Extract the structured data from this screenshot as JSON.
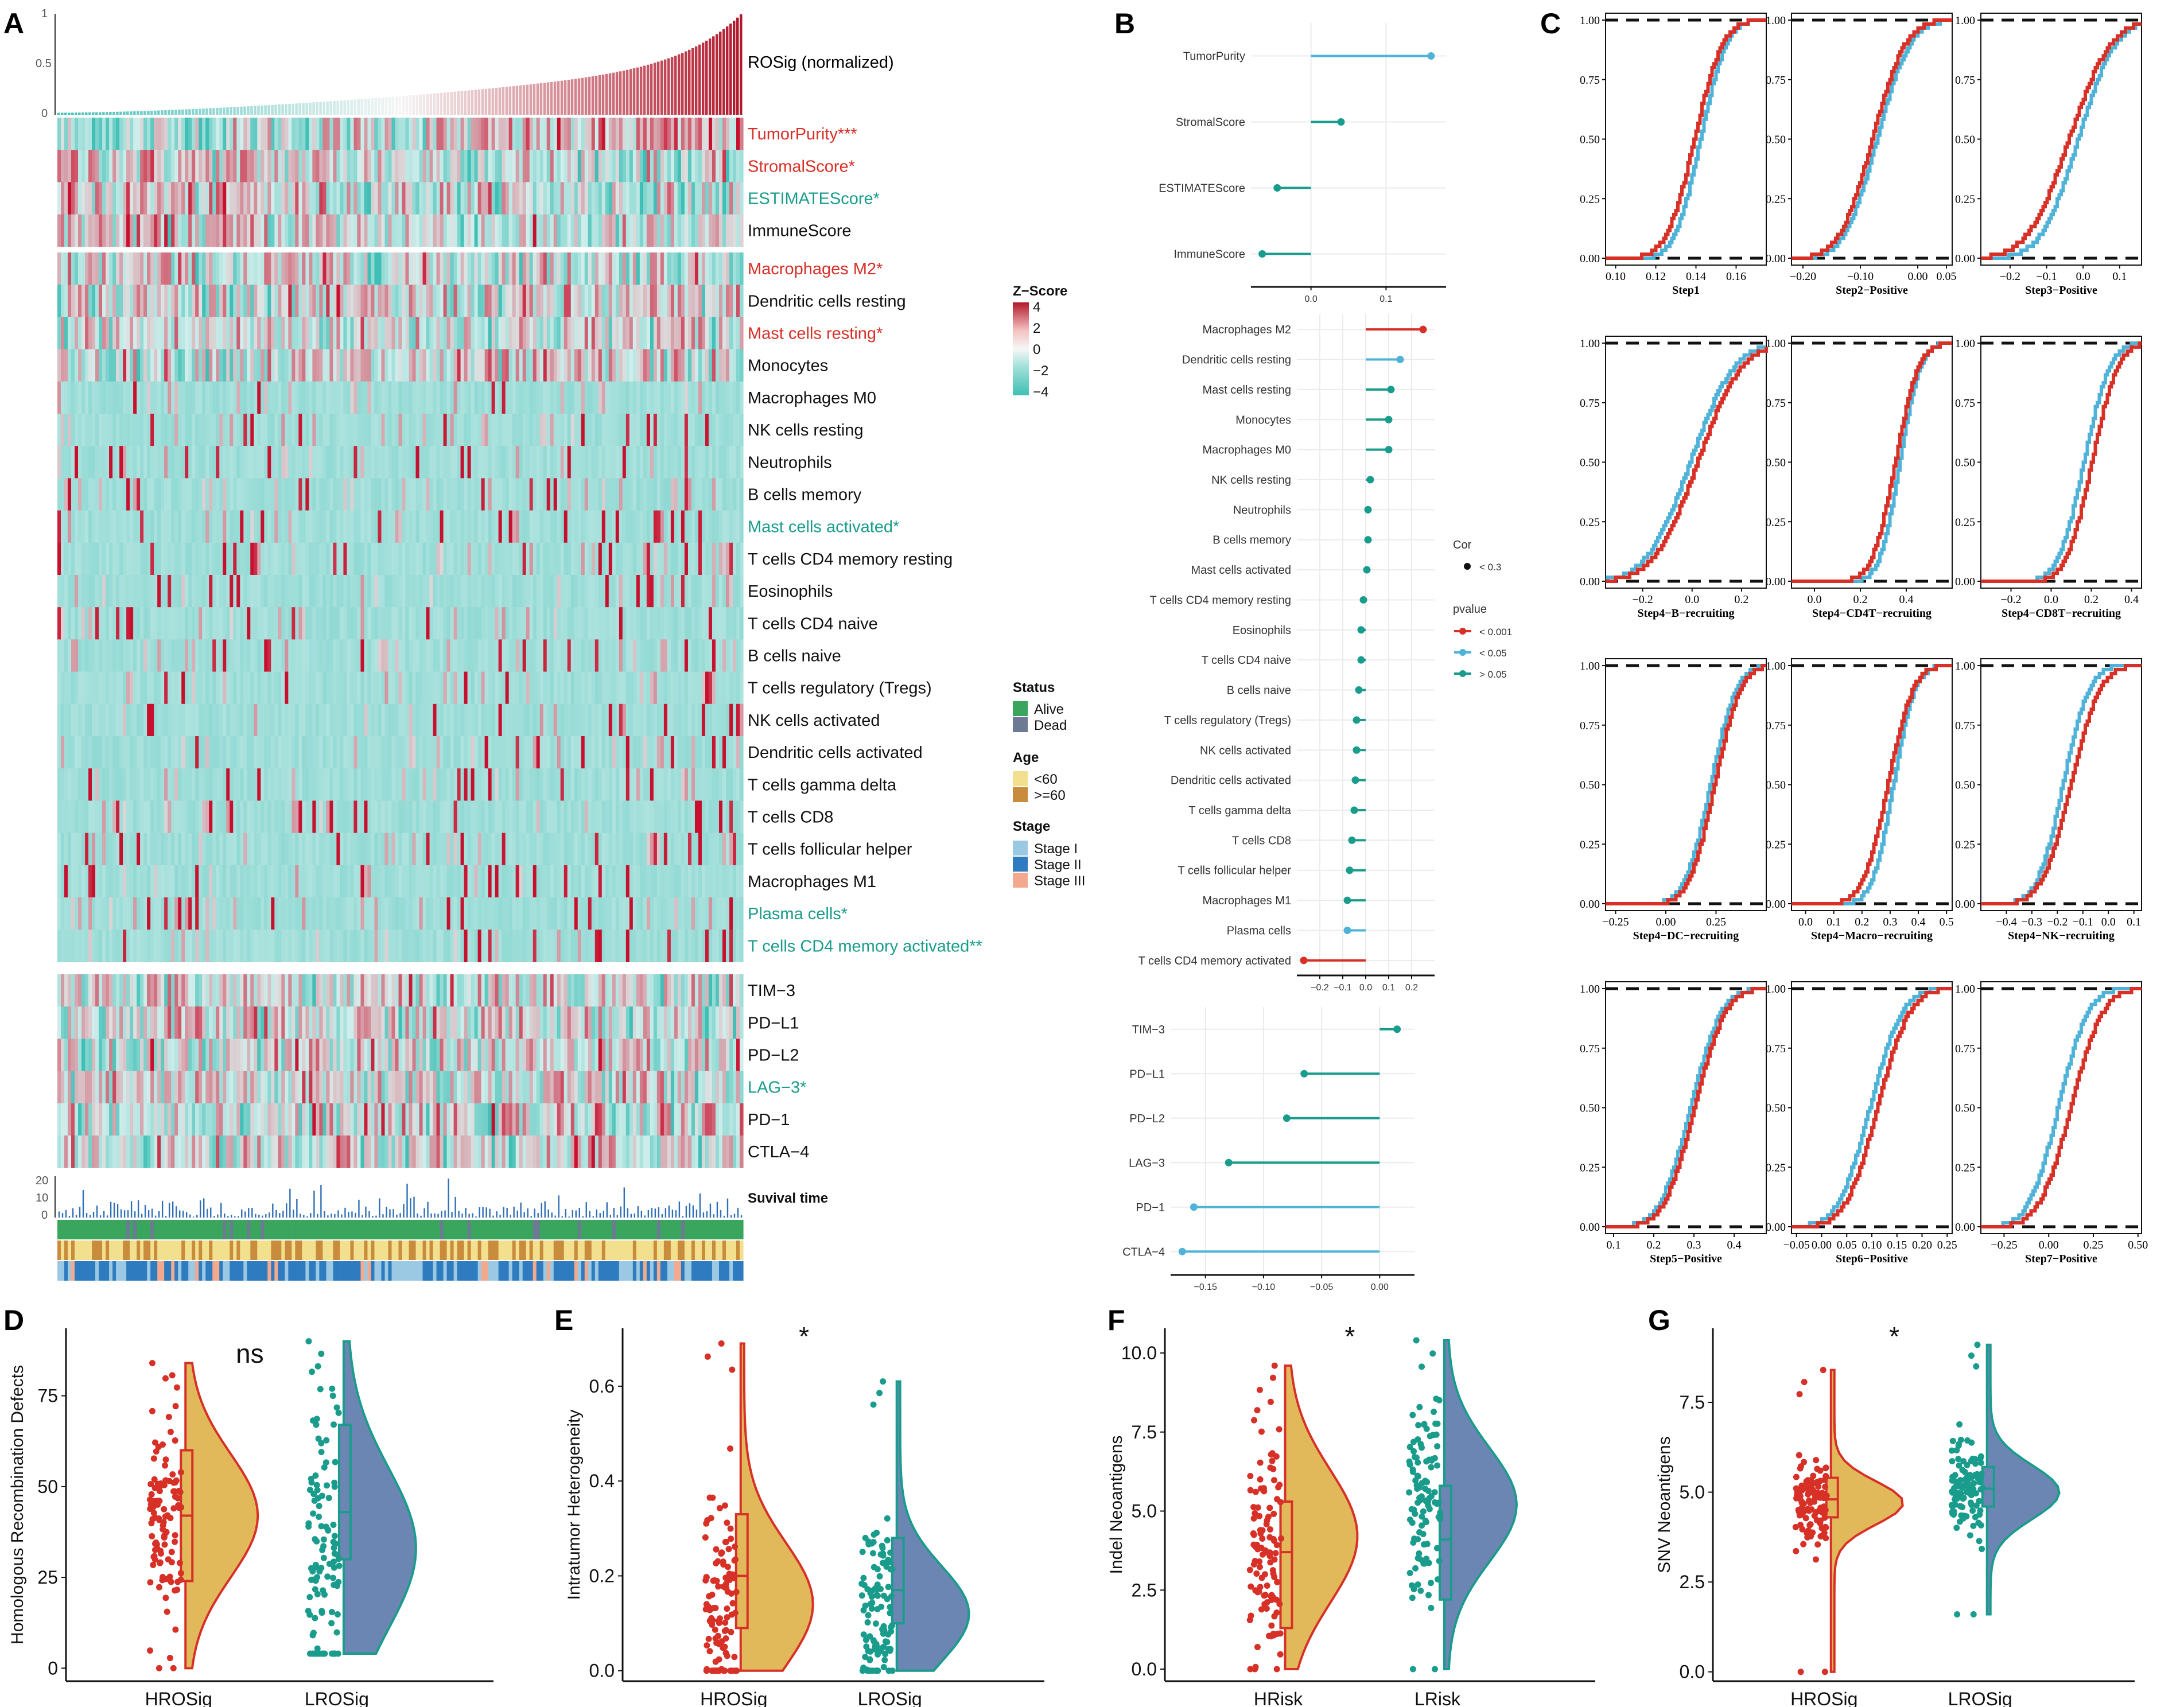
{
  "colors": {
    "red": "#d73027",
    "teal": "#1a9c8c",
    "blue": "#4fb3d9",
    "low": "#3fbfb5",
    "high": "#c8102e",
    "hr_fill": "#e1b95b",
    "lr_fill": "#6b86b3",
    "alive": "#3aa55c",
    "dead": "#6c7a93",
    "age1": "#f2e08f",
    "age2": "#c98b3c",
    "st1": "#9bc9e3",
    "st2": "#2f7bbf",
    "st3": "#f2a98e"
  },
  "panels": {
    "A": "A",
    "B": "B",
    "C": "C",
    "D": "D",
    "E": "E",
    "F": "F",
    "G": "G"
  },
  "panelA": {
    "bar_label": "ROSig (normalized)",
    "bar_ticks": [
      "1",
      "0.5",
      "0"
    ],
    "surv_label": "Suvival time",
    "surv_ticks": [
      "20",
      "10",
      "0"
    ],
    "row_groups": [
      [
        {
          "label": "TumorPurity***",
          "color": "#d73027"
        },
        {
          "label": "StromalScore*",
          "color": "#d73027"
        },
        {
          "label": "ESTIMATEScore*",
          "color": "#1a9c8c"
        },
        {
          "label": "ImmuneScore",
          "color": "#111111"
        }
      ],
      [
        {
          "label": "Macrophages M2*",
          "color": "#d73027"
        },
        {
          "label": "Dendritic cells resting",
          "color": "#111111"
        },
        {
          "label": "Mast cells resting*",
          "color": "#d73027"
        },
        {
          "label": "Monocytes",
          "color": "#111111"
        },
        {
          "label": "Macrophages M0",
          "color": "#111111"
        },
        {
          "label": "NK cells resting",
          "color": "#111111"
        },
        {
          "label": "Neutrophils",
          "color": "#111111"
        },
        {
          "label": "B cells memory",
          "color": "#111111"
        },
        {
          "label": "Mast cells activated*",
          "color": "#1a9c8c"
        },
        {
          "label": "T cells CD4 memory resting",
          "color": "#111111"
        },
        {
          "label": "Eosinophils",
          "color": "#111111"
        },
        {
          "label": "T cells CD4 naive",
          "color": "#111111"
        },
        {
          "label": "B cells naive",
          "color": "#111111"
        },
        {
          "label": "T cells regulatory (Tregs)",
          "color": "#111111"
        },
        {
          "label": "NK cells activated",
          "color": "#111111"
        },
        {
          "label": "Dendritic cells activated",
          "color": "#111111"
        },
        {
          "label": "T cells gamma delta",
          "color": "#111111"
        },
        {
          "label": "T cells CD8",
          "color": "#111111"
        },
        {
          "label": "T cells follicular helper",
          "color": "#111111"
        },
        {
          "label": "Macrophages M1",
          "color": "#111111"
        },
        {
          "label": "Plasma cells*",
          "color": "#1a9c8c"
        },
        {
          "label": "T cells CD4 memory activated**",
          "color": "#1a9c8c"
        }
      ],
      [
        {
          "label": "TIM−3",
          "color": "#111111"
        },
        {
          "label": "PD−L1",
          "color": "#111111"
        },
        {
          "label": "PD−L2",
          "color": "#111111"
        },
        {
          "label": "LAG−3*",
          "color": "#1a9c8c"
        },
        {
          "label": "PD−1",
          "color": "#111111"
        },
        {
          "label": "CTLA−4",
          "color": "#111111"
        }
      ]
    ],
    "legend": {
      "zscore_title": "Z−Score",
      "zscore_ticks": [
        "4",
        "2",
        "0",
        "−2",
        "−4"
      ],
      "status_title": "Status",
      "status": [
        "Alive",
        "Dead"
      ],
      "age_title": "Age",
      "age": [
        "<60",
        ">=60"
      ],
      "stage_title": "Stage",
      "stage": [
        "Stage I",
        "Stage II",
        "Stage III"
      ]
    }
  },
  "panelB": {
    "legend": {
      "cor_title": "Cor",
      "cor_item": "< 0.3",
      "p_title": "pvalue",
      "p_items": [
        "< 0.001",
        "< 0.05",
        "> 0.05"
      ]
    },
    "groups": [
      {
        "range": [
          -0.08,
          0.18
        ],
        "ticks": [
          0.0,
          0.1
        ],
        "tick_labels": [
          "0.0",
          "0.1"
        ],
        "items": [
          {
            "label": "TumorPurity",
            "r": 0.16,
            "p": "< 0.05"
          },
          {
            "label": "StromalScore",
            "r": 0.04,
            "p": "> 0.05"
          },
          {
            "label": "ESTIMATEScore",
            "r": -0.045,
            "p": "> 0.05"
          },
          {
            "label": "ImmuneScore",
            "r": -0.065,
            "p": "> 0.05"
          }
        ]
      },
      {
        "range": [
          -0.3,
          0.3
        ],
        "ticks": [
          -0.2,
          -0.1,
          0.0,
          0.1,
          0.2
        ],
        "tick_labels": [
          "−0.2",
          "−0.1",
          "0.0",
          "0.1",
          "0.2"
        ],
        "items": [
          {
            "label": "Macrophages M2",
            "r": 0.25,
            "p": "< 0.001"
          },
          {
            "label": "Dendritic cells resting",
            "r": 0.15,
            "p": "< 0.05"
          },
          {
            "label": "Mast cells resting",
            "r": 0.11,
            "p": "> 0.05"
          },
          {
            "label": "Monocytes",
            "r": 0.1,
            "p": "> 0.05"
          },
          {
            "label": "Macrophages M0",
            "r": 0.1,
            "p": "> 0.05"
          },
          {
            "label": "NK cells resting",
            "r": 0.02,
            "p": "> 0.05"
          },
          {
            "label": "Neutrophils",
            "r": 0.01,
            "p": "> 0.05"
          },
          {
            "label": "B cells memory",
            "r": 0.01,
            "p": "> 0.05"
          },
          {
            "label": "Mast cells activated",
            "r": 0.005,
            "p": "> 0.05"
          },
          {
            "label": "T cells CD4 memory resting",
            "r": -0.01,
            "p": "> 0.05"
          },
          {
            "label": "Eosinophils",
            "r": -0.02,
            "p": "> 0.05"
          },
          {
            "label": "T cells CD4 naive",
            "r": -0.02,
            "p": "> 0.05"
          },
          {
            "label": "B cells naive",
            "r": -0.03,
            "p": "> 0.05"
          },
          {
            "label": "T cells regulatory (Tregs)",
            "r": -0.04,
            "p": "> 0.05"
          },
          {
            "label": "NK cells activated",
            "r": -0.04,
            "p": "> 0.05"
          },
          {
            "label": "Dendritic cells activated",
            "r": -0.045,
            "p": "> 0.05"
          },
          {
            "label": "T cells gamma delta",
            "r": -0.05,
            "p": "> 0.05"
          },
          {
            "label": "T cells CD8",
            "r": -0.06,
            "p": "> 0.05"
          },
          {
            "label": "T cells follicular helper",
            "r": -0.07,
            "p": "> 0.05"
          },
          {
            "label": "Macrophages M1",
            "r": -0.08,
            "p": "> 0.05"
          },
          {
            "label": "Plasma cells",
            "r": -0.08,
            "p": "< 0.05"
          },
          {
            "label": "T cells CD4 memory activated",
            "r": -0.27,
            "p": "< 0.001"
          }
        ]
      },
      {
        "range": [
          -0.18,
          0.03
        ],
        "ticks": [
          -0.15,
          -0.1,
          -0.05,
          0.0
        ],
        "tick_labels": [
          "−0.15",
          "−0.10",
          "−0.05",
          "0.00"
        ],
        "items": [
          {
            "label": "TIM−3",
            "r": 0.015,
            "p": "> 0.05"
          },
          {
            "label": "PD−L1",
            "r": -0.065,
            "p": "> 0.05"
          },
          {
            "label": "PD−L2",
            "r": -0.08,
            "p": "> 0.05"
          },
          {
            "label": "LAG−3",
            "r": -0.13,
            "p": "> 0.05"
          },
          {
            "label": "PD−1",
            "r": -0.16,
            "p": "< 0.05"
          },
          {
            "label": "CTLA−4",
            "r": -0.17,
            "p": "< 0.05"
          }
        ]
      }
    ]
  },
  "chart_data": {
    "type": "composite",
    "ecdf": {
      "y_ticks": [
        "0.00",
        "0.25",
        "0.50",
        "0.75",
        "1.00"
      ],
      "panels": [
        {
          "title": "Step1",
          "xlim": [
            0.095,
            0.175
          ],
          "ticks": [
            0.1,
            0.12,
            0.14,
            0.16
          ],
          "tick_labels": [
            "0.10",
            "0.12",
            "0.14",
            "0.16"
          ],
          "red_med": 0.139,
          "red_sd": 0.011,
          "blue_med": 0.142,
          "blue_sd": 0.01
        },
        {
          "title": "Step2−Positive",
          "xlim": [
            -0.22,
            0.06
          ],
          "ticks": [
            -0.2,
            -0.1,
            0.0,
            0.05
          ],
          "tick_labels": [
            "−0.20",
            "−0.10",
            "0.00",
            "0.05"
          ],
          "red_med": -0.08,
          "red_sd": 0.045,
          "blue_med": -0.072,
          "blue_sd": 0.045
        },
        {
          "title": "Step3−Positive",
          "xlim": [
            -0.28,
            0.16
          ],
          "ticks": [
            -0.2,
            -0.1,
            0.0,
            0.1
          ],
          "tick_labels": [
            "−0.2",
            "−0.1",
            "0.0",
            "0.1"
          ],
          "red_med": -0.04,
          "red_sd": 0.09,
          "blue_med": -0.015,
          "blue_sd": 0.08
        },
        {
          "title": "Step4−B−recruiting",
          "xlim": [
            -0.35,
            0.3
          ],
          "ticks": [
            -0.2,
            0.0,
            0.2
          ],
          "tick_labels": [
            "−0.2",
            "0.0",
            "0.2"
          ],
          "red_med": 0.02,
          "red_sd": 0.14,
          "blue_med": -0.01,
          "blue_sd": 0.14
        },
        {
          "title": "Step4−CD4T−recruiting",
          "xlim": [
            -0.1,
            0.6
          ],
          "ticks": [
            0.0,
            0.2,
            0.4
          ],
          "tick_labels": [
            "0.0",
            "0.2",
            "0.4"
          ],
          "red_med": 0.35,
          "red_sd": 0.08,
          "blue_med": 0.37,
          "blue_sd": 0.07
        },
        {
          "title": "Step4−CD8T−recruiting",
          "xlim": [
            -0.35,
            0.45
          ],
          "ticks": [
            -0.2,
            0.0,
            0.2,
            0.4
          ],
          "tick_labels": [
            "−0.2",
            "0.0",
            "0.2",
            "0.4"
          ],
          "red_med": 0.2,
          "red_sd": 0.1,
          "blue_med": 0.16,
          "blue_sd": 0.1
        },
        {
          "title": "Step4−DC−recruiting",
          "xlim": [
            -0.3,
            0.5
          ],
          "ticks": [
            -0.25,
            0.0,
            0.25
          ],
          "tick_labels": [
            "−0.25",
            "0.00",
            "0.25"
          ],
          "red_med": 0.24,
          "red_sd": 0.1,
          "blue_med": 0.22,
          "blue_sd": 0.1
        },
        {
          "title": "Step4−Macro−recruiting",
          "xlim": [
            -0.05,
            0.52
          ],
          "ticks": [
            0.0,
            0.1,
            0.2,
            0.3,
            0.4,
            0.5
          ],
          "tick_labels": [
            "0.0",
            "0.1",
            "0.2",
            "0.3",
            "0.4",
            "0.5"
          ],
          "red_med": 0.29,
          "red_sd": 0.07,
          "blue_med": 0.31,
          "blue_sd": 0.06
        },
        {
          "title": "Step4−NK−recruiting",
          "xlim": [
            -0.5,
            0.13
          ],
          "ticks": [
            -0.4,
            -0.3,
            -0.2,
            -0.1,
            0.0,
            0.1
          ],
          "tick_labels": [
            "−0.4",
            "−0.3",
            "−0.2",
            "−0.1",
            "0.0",
            "0.1"
          ],
          "red_med": -0.15,
          "red_sd": 0.09,
          "blue_med": -0.18,
          "blue_sd": 0.08
        },
        {
          "title": "Step5−Positive",
          "xlim": [
            0.08,
            0.48
          ],
          "ticks": [
            0.1,
            0.2,
            0.3,
            0.4
          ],
          "tick_labels": [
            "0.1",
            "0.2",
            "0.3",
            "0.4"
          ],
          "red_med": 0.3,
          "red_sd": 0.06,
          "blue_med": 0.29,
          "blue_sd": 0.06
        },
        {
          "title": "Step6−Positive",
          "xlim": [
            -0.06,
            0.26
          ],
          "ticks": [
            -0.05,
            0.0,
            0.05,
            0.1,
            0.15,
            0.2,
            0.25
          ],
          "tick_labels": [
            "−0.05",
            "0.00",
            "0.05",
            "0.10",
            "0.15",
            "0.20",
            "0.25"
          ],
          "red_med": 0.11,
          "red_sd": 0.05,
          "blue_med": 0.095,
          "blue_sd": 0.05
        },
        {
          "title": "Step7−Positive",
          "xlim": [
            -0.38,
            0.52
          ],
          "ticks": [
            -0.25,
            0.0,
            0.25,
            0.5
          ],
          "tick_labels": [
            "−0.25",
            "0.00",
            "0.25",
            "0.50"
          ],
          "red_med": 0.12,
          "red_sd": 0.14,
          "blue_med": 0.05,
          "blue_sd": 0.13
        }
      ]
    },
    "violins": [
      {
        "panel": "D",
        "ylabel": "Homologous Recombination Defects",
        "ylim": [
          -2,
          92
        ],
        "yticks": [
          0,
          25,
          50,
          75
        ],
        "groups": [
          "HROSig",
          "LROSig"
        ],
        "sig": "ns",
        "hr": {
          "min": 0,
          "q1": 24,
          "med": 42,
          "q3": 60,
          "max": 84,
          "mode": 42,
          "spread": 17
        },
        "lr": {
          "min": 4,
          "q1": 30,
          "med": 43,
          "q3": 67,
          "max": 90,
          "mode": 33,
          "spread": 22
        }
      },
      {
        "panel": "E",
        "ylabel": "Intratumor Heterogeneity",
        "ylim": [
          -0.01,
          0.71
        ],
        "yticks": [
          0.0,
          0.2,
          0.4,
          0.6
        ],
        "groups": [
          "HROSig",
          "LROSig"
        ],
        "sig": "*",
        "hr": {
          "min": 0,
          "q1": 0.09,
          "med": 0.2,
          "q3": 0.33,
          "max": 0.69,
          "mode": 0.14,
          "spread": 0.13
        },
        "lr": {
          "min": 0,
          "q1": 0.1,
          "med": 0.17,
          "q3": 0.28,
          "max": 0.61,
          "mode": 0.12,
          "spread": 0.1
        }
      },
      {
        "panel": "F",
        "ylabel": "Indel Neoantigens",
        "ylim": [
          -0.2,
          10.6
        ],
        "yticks": [
          0.0,
          2.5,
          5.0,
          7.5,
          10.0
        ],
        "groups": [
          "HRisk",
          "LRisk"
        ],
        "sig": "*",
        "hr": {
          "min": 0,
          "q1": 1.3,
          "med": 3.7,
          "q3": 5.3,
          "max": 9.6,
          "mode": 4.2,
          "spread": 2.1
        },
        "lr": {
          "min": 0,
          "q1": 2.2,
          "med": 4.1,
          "q3": 5.8,
          "max": 10.4,
          "mode": 5.2,
          "spread": 1.8
        }
      },
      {
        "panel": "G",
        "ylabel": "SNV Neoantigens",
        "ylim": [
          -0.1,
          9.4
        ],
        "yticks": [
          0.0,
          2.5,
          5.0,
          7.5
        ],
        "groups": [
          "HROSig",
          "LROSig"
        ],
        "sig": "*",
        "hr": {
          "min": 0,
          "q1": 4.3,
          "med": 4.8,
          "q3": 5.4,
          "max": 8.4,
          "mode": 4.7,
          "spread": 0.6
        },
        "lr": {
          "min": 1.6,
          "q1": 4.6,
          "med": 5.1,
          "q3": 5.7,
          "max": 9.1,
          "mode": 5.0,
          "spread": 0.75
        }
      }
    ]
  }
}
